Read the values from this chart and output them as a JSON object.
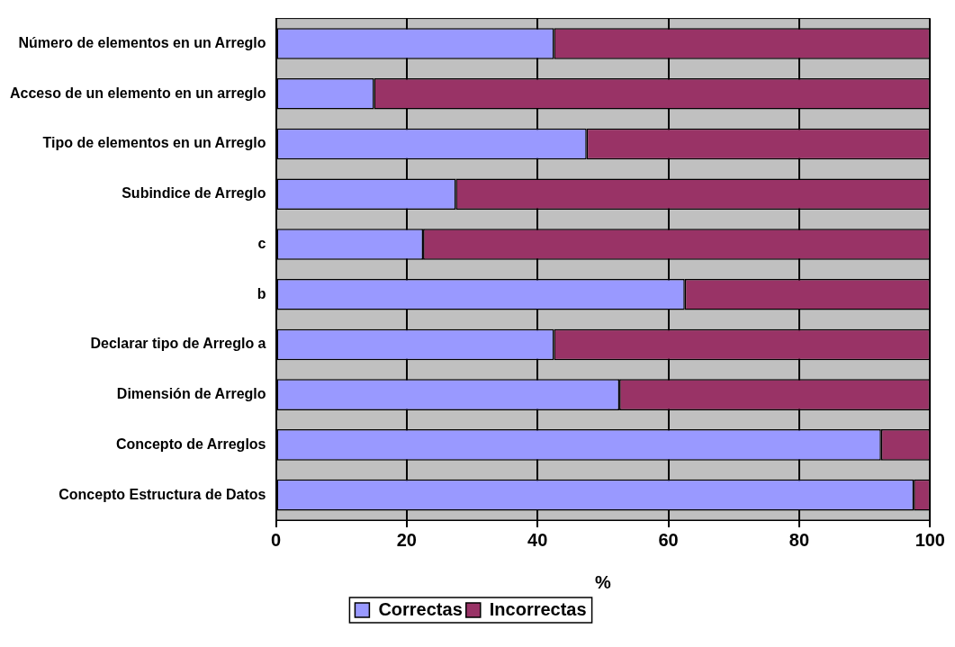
{
  "chart_data": {
    "type": "bar",
    "orientation": "horizontal",
    "stacked": true,
    "categories": [
      "Número de elementos en un Arreglo",
      "Acceso de un elemento en un arreglo",
      "Tipo de elementos en un Arreglo",
      "Subindice de Arreglo",
      "c",
      "b",
      "Declarar tipo de Arreglo a",
      "Dimensión de Arreglo",
      "Concepto de Arreglos",
      "Concepto Estructura de Datos"
    ],
    "series": [
      {
        "name": "Correctas",
        "color": "#9999ff",
        "values": [
          42.5,
          15,
          47.5,
          27.5,
          22.5,
          62.5,
          42.5,
          52.5,
          92.5,
          97.5
        ]
      },
      {
        "name": "Incorrectas",
        "color": "#993366",
        "values": [
          57.5,
          85,
          52.5,
          72.5,
          77.5,
          37.5,
          57.5,
          47.5,
          7.5,
          2.5
        ]
      }
    ],
    "xlabel": "%",
    "xlim": [
      0,
      100
    ],
    "xticks": [
      0,
      20,
      40,
      60,
      80,
      100
    ],
    "grid": "x",
    "legend": "bottom"
  }
}
